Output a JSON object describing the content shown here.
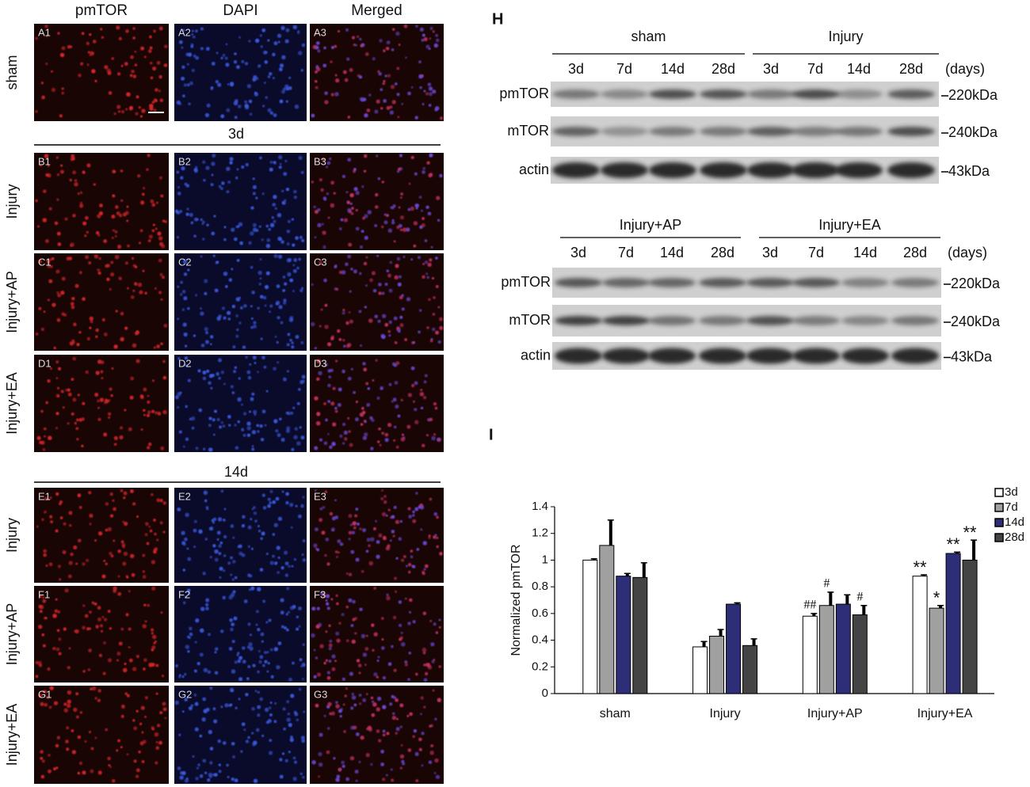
{
  "micrographs": {
    "columns": [
      "pmTOR",
      "DAPI",
      "Merged"
    ],
    "timepoints": [
      "3d",
      "14d"
    ],
    "rows": [
      {
        "label": "sham",
        "panels": [
          "A1",
          "A2",
          "A3"
        ]
      },
      {
        "label": "Injury",
        "panels": [
          "B1",
          "B2",
          "B3"
        ]
      },
      {
        "label": "Injury+AP",
        "panels": [
          "C1",
          "C2",
          "C3"
        ]
      },
      {
        "label": "Injury+EA",
        "panels": [
          "D1",
          "D2",
          "D3"
        ]
      },
      {
        "label": "Injury",
        "panels": [
          "E1",
          "E2",
          "E3"
        ]
      },
      {
        "label": "Injury+AP",
        "panels": [
          "F1",
          "F2",
          "F3"
        ]
      },
      {
        "label": "Injury+EA",
        "panels": [
          "G1",
          "G2",
          "G3"
        ]
      }
    ]
  },
  "blot_panel": {
    "letter": "H",
    "blots": [
      {
        "groups": [
          {
            "name": "sham",
            "lanes": [
              "3d",
              "7d",
              "14d",
              "28d"
            ]
          },
          {
            "name": "Injury",
            "lanes": [
              "3d",
              "7d",
              "14d",
              "28d"
            ]
          }
        ],
        "unit": "(days)",
        "rows": [
          {
            "name": "pmTOR",
            "size": "220kDa"
          },
          {
            "name": "mTOR",
            "size": "240kDa"
          },
          {
            "name": "actin",
            "size": "43kDa"
          }
        ]
      },
      {
        "groups": [
          {
            "name": "Injury+AP",
            "lanes": [
              "3d",
              "7d",
              "14d",
              "28d"
            ]
          },
          {
            "name": "Injury+EA",
            "lanes": [
              "3d",
              "7d",
              "14d",
              "28d"
            ]
          }
        ],
        "unit": "(days)",
        "rows": [
          {
            "name": "pmTOR",
            "size": "220kDa"
          },
          {
            "name": "mTOR",
            "size": "240kDa"
          },
          {
            "name": "actin",
            "size": "43kDa"
          }
        ]
      }
    ]
  },
  "chart_panel": {
    "letter": "I"
  },
  "chart_data": {
    "type": "bar",
    "y_label": "Normalized pmTOR",
    "categories": [
      "sham",
      "Injury",
      "Injury+AP",
      "Injury+EA"
    ],
    "series": [
      {
        "name": "3d",
        "color": "#ffffff",
        "values": [
          1.0,
          0.35,
          0.58,
          0.88
        ],
        "errors": [
          0.01,
          0.04,
          0.02,
          0.01
        ],
        "marks": [
          null,
          null,
          "##",
          "**"
        ]
      },
      {
        "name": "7d",
        "color": "#a0a0a0",
        "values": [
          1.11,
          0.43,
          0.66,
          0.64
        ],
        "errors": [
          0.19,
          0.05,
          0.1,
          0.02
        ],
        "marks": [
          null,
          null,
          "#",
          "*"
        ]
      },
      {
        "name": "14d",
        "color": "#2e2e78",
        "values": [
          0.88,
          0.67,
          0.67,
          1.05
        ],
        "errors": [
          0.02,
          0.01,
          0.07,
          0.01
        ],
        "marks": [
          null,
          null,
          null,
          "**"
        ]
      },
      {
        "name": "28d",
        "color": "#444444",
        "values": [
          0.87,
          0.36,
          0.59,
          1.0
        ],
        "errors": [
          0.11,
          0.05,
          0.07,
          0.15
        ],
        "marks": [
          null,
          null,
          "#",
          "**"
        ]
      }
    ],
    "ylim": [
      0,
      1.4
    ],
    "yticks": [
      0,
      0.2,
      0.4,
      0.6,
      0.8,
      1,
      1.2,
      1.4
    ],
    "legend": "upper right"
  }
}
